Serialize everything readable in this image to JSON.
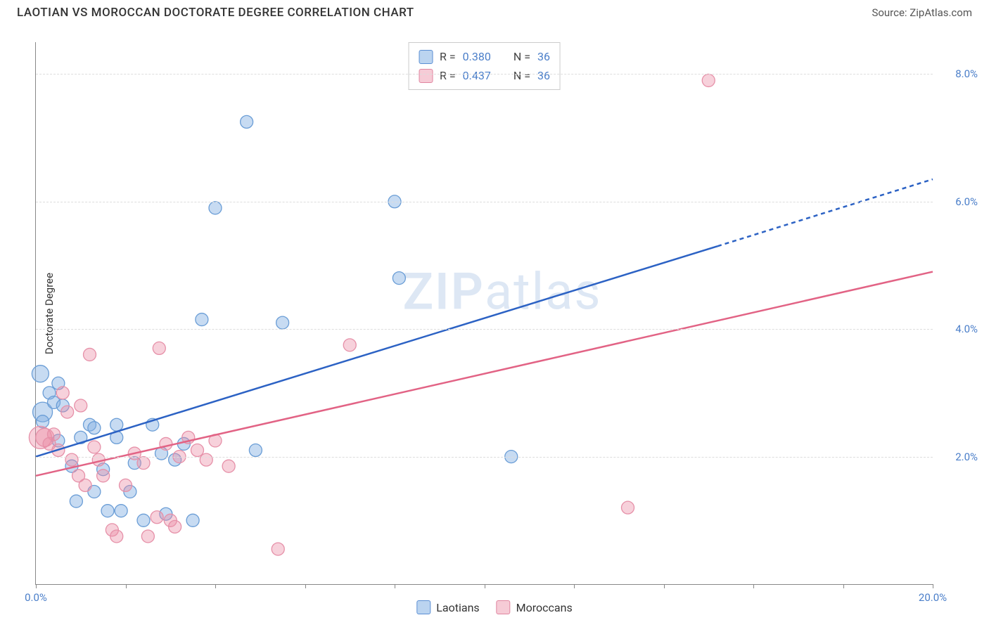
{
  "header": {
    "title": "LAOTIAN VS MOROCCAN DOCTORATE DEGREE CORRELATION CHART",
    "source_label": "Source: ",
    "source_value": "ZipAtlas.com"
  },
  "axes": {
    "ylabel": "Doctorate Degree",
    "xlim": [
      0,
      20
    ],
    "ylim": [
      0,
      8.5
    ],
    "xtick_positions": [
      0,
      2,
      4,
      6,
      8,
      10,
      12,
      14,
      16,
      18,
      20
    ],
    "xtick_labels": {
      "0": "0.0%",
      "20": "20.0%"
    },
    "ytick_positions": [
      2,
      4,
      6,
      8
    ],
    "ytick_labels": [
      "2.0%",
      "4.0%",
      "6.0%",
      "8.0%"
    ],
    "grid_color": "#dddddd",
    "axis_color": "#888888",
    "tick_label_color": "#4a7ec9"
  },
  "trend_legend": {
    "rows": [
      {
        "swatch": "blue",
        "r_label": "R =",
        "r_value": "0.380",
        "n_label": "N =",
        "n_value": "36"
      },
      {
        "swatch": "pink",
        "r_label": "R =",
        "r_value": "0.437",
        "n_label": "N =",
        "n_value": "36"
      }
    ]
  },
  "bottom_legend": {
    "items": [
      {
        "swatch": "blue",
        "label": "Laotians"
      },
      {
        "swatch": "pink",
        "label": "Moroccans"
      }
    ]
  },
  "watermark": "ZIPatlas",
  "chart": {
    "type": "scatter",
    "background_color": "#ffffff",
    "series": [
      {
        "name": "Laotians",
        "fill": "rgba(130,175,226,0.45)",
        "stroke": "#6a9dd6",
        "radius": 9,
        "points": [
          [
            0.1,
            3.3,
            12
          ],
          [
            0.15,
            2.7,
            14
          ],
          [
            0.3,
            3.0
          ],
          [
            0.4,
            2.85
          ],
          [
            0.15,
            2.55
          ],
          [
            0.5,
            2.25
          ],
          [
            0.5,
            3.15
          ],
          [
            0.6,
            2.8
          ],
          [
            0.8,
            1.85
          ],
          [
            0.9,
            1.3
          ],
          [
            1.0,
            2.3
          ],
          [
            1.2,
            2.5
          ],
          [
            1.3,
            2.45
          ],
          [
            1.3,
            1.45
          ],
          [
            1.5,
            1.8
          ],
          [
            1.6,
            1.15
          ],
          [
            1.8,
            2.5
          ],
          [
            1.8,
            2.3
          ],
          [
            1.9,
            1.15
          ],
          [
            2.1,
            1.45
          ],
          [
            2.2,
            1.9
          ],
          [
            2.4,
            1.0
          ],
          [
            2.6,
            2.5
          ],
          [
            2.8,
            2.05
          ],
          [
            2.9,
            1.1
          ],
          [
            3.1,
            1.95
          ],
          [
            3.3,
            2.2
          ],
          [
            3.5,
            1.0
          ],
          [
            3.7,
            4.15
          ],
          [
            4.0,
            5.9
          ],
          [
            4.7,
            7.25
          ],
          [
            4.9,
            2.1
          ],
          [
            5.5,
            4.1
          ],
          [
            8.0,
            6.0
          ],
          [
            8.1,
            4.8
          ],
          [
            10.6,
            2.0
          ]
        ],
        "trend": {
          "x1": 0,
          "y1": 2.0,
          "x2": 15.2,
          "y2": 5.3,
          "x2_ext": 20,
          "y2_ext": 6.35,
          "color": "#2c62c4",
          "width": 2.5,
          "dash_ext": "6,5"
        }
      },
      {
        "name": "Moroccans",
        "fill": "rgba(236,140,164,0.40)",
        "stroke": "#e690a8",
        "radius": 9,
        "points": [
          [
            0.1,
            2.3,
            16
          ],
          [
            0.2,
            2.3,
            13
          ],
          [
            0.3,
            2.2
          ],
          [
            0.4,
            2.35
          ],
          [
            0.5,
            2.1
          ],
          [
            0.6,
            3.0
          ],
          [
            0.7,
            2.7
          ],
          [
            0.8,
            1.95
          ],
          [
            0.95,
            1.7
          ],
          [
            1.0,
            2.8
          ],
          [
            1.1,
            1.55
          ],
          [
            1.2,
            3.6
          ],
          [
            1.3,
            2.15
          ],
          [
            1.4,
            1.95
          ],
          [
            1.5,
            1.7
          ],
          [
            1.7,
            0.85
          ],
          [
            1.8,
            0.75
          ],
          [
            2.0,
            1.55
          ],
          [
            2.2,
            2.05
          ],
          [
            2.4,
            1.9
          ],
          [
            2.5,
            0.75
          ],
          [
            2.7,
            1.05
          ],
          [
            2.75,
            3.7
          ],
          [
            2.9,
            2.2
          ],
          [
            3.0,
            1.0
          ],
          [
            3.1,
            0.9
          ],
          [
            3.2,
            2.0
          ],
          [
            3.4,
            2.3
          ],
          [
            3.6,
            2.1
          ],
          [
            3.8,
            1.95
          ],
          [
            4.0,
            2.25
          ],
          [
            4.3,
            1.85
          ],
          [
            5.4,
            0.55
          ],
          [
            7.0,
            3.75
          ],
          [
            13.2,
            1.2
          ],
          [
            15.0,
            7.9
          ]
        ],
        "trend": {
          "x1": 0,
          "y1": 1.7,
          "x2": 20,
          "y2": 4.9,
          "color": "#e26385",
          "width": 2.5
        }
      }
    ]
  }
}
